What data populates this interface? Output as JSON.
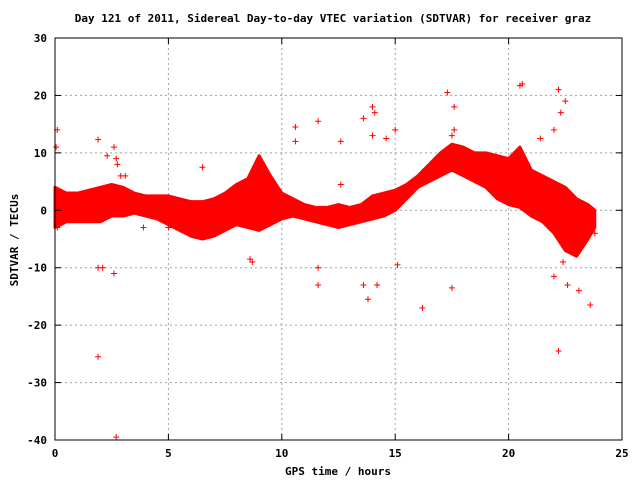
{
  "chart_data": {
    "type": "scatter",
    "title": "Day 121 of 2011, Sidereal Day-to-day VTEC variation (SDTVAR) for receiver graz",
    "xlabel": "GPS time / hours",
    "ylabel": "SDTVAR / TECUs",
    "xlim": [
      0,
      25
    ],
    "ylim": [
      -40,
      30
    ],
    "xticks": [
      "0",
      "5",
      "10",
      "15",
      "20",
      "25"
    ],
    "yticks": [
      "30",
      "20",
      "10",
      "0",
      "-10",
      "-20",
      "-30",
      "-40"
    ],
    "grid": true,
    "color": "#ff0000",
    "marker": "plus",
    "series": [
      {
        "band_x": [
          0.0,
          0.5,
          1.0,
          1.5,
          2.0,
          2.5,
          3.0,
          3.5,
          4.0,
          4.5,
          5.0,
          5.5,
          6.0,
          6.5,
          7.0,
          7.5,
          8.0,
          8.5,
          9.0,
          9.5,
          10.0,
          10.5,
          11.0,
          11.5,
          12.0,
          12.5,
          13.0,
          13.5,
          14.0,
          14.5,
          15.0,
          15.5,
          16.0,
          16.5,
          17.0,
          17.5,
          18.0,
          18.5,
          19.0,
          19.5,
          20.0,
          20.5,
          21.0,
          21.5,
          22.0,
          22.5,
          23.0,
          23.5,
          23.8
        ],
        "band_upper": [
          4,
          3,
          3,
          3.5,
          4,
          4.5,
          4,
          3,
          2.5,
          2.5,
          2.5,
          2,
          1.5,
          1.5,
          2,
          3,
          4.5,
          5.5,
          9.5,
          6,
          3,
          2,
          1,
          0.5,
          0.5,
          1,
          0.5,
          1,
          2.5,
          3,
          3.5,
          4.5,
          6,
          8,
          10,
          11.5,
          11,
          10,
          10,
          9.5,
          9,
          11,
          7,
          6,
          5,
          4,
          2,
          1,
          0
        ],
        "band_lower": [
          -3,
          -2,
          -2,
          -2,
          -2,
          -1,
          -1,
          -0.5,
          -1,
          -1.5,
          -2.5,
          -3.5,
          -4.5,
          -5,
          -4.5,
          -3.5,
          -2.5,
          -3,
          -3.5,
          -2.5,
          -1.5,
          -1,
          -1.5,
          -2,
          -2.5,
          -3,
          -2.5,
          -2,
          -1.5,
          -1,
          0,
          2,
          4,
          5,
          6,
          7,
          6,
          5,
          4,
          2,
          1,
          0.5,
          -1,
          -2,
          -4,
          -7,
          -8,
          -5,
          -3
        ]
      },
      {
        "name": "",
        "points": [
          [
            0.1,
            14
          ],
          [
            0.05,
            11
          ],
          [
            1.9,
            12.3
          ],
          [
            2.6,
            11
          ],
          [
            2.3,
            9.5
          ],
          [
            2.7,
            9
          ],
          [
            2.75,
            8
          ],
          [
            2.9,
            6
          ],
          [
            3.1,
            6
          ],
          [
            6.5,
            7.5
          ],
          [
            10.6,
            14.5
          ],
          [
            10.6,
            12
          ],
          [
            11.6,
            15.5
          ],
          [
            12.6,
            12
          ],
          [
            12.6,
            4.5
          ],
          [
            13.6,
            16
          ],
          [
            14.0,
            18
          ],
          [
            14.1,
            17
          ],
          [
            14.0,
            13
          ],
          [
            14.6,
            12.5
          ],
          [
            15.0,
            14
          ],
          [
            17.3,
            20.5
          ],
          [
            17.6,
            18
          ],
          [
            17.5,
            13
          ],
          [
            17.6,
            14
          ],
          [
            20.6,
            22
          ],
          [
            20.5,
            21.7
          ],
          [
            21.4,
            12.5
          ],
          [
            22.0,
            14
          ],
          [
            22.2,
            21
          ],
          [
            22.3,
            17
          ],
          [
            22.5,
            19
          ],
          [
            1.9,
            -25.5
          ],
          [
            2.7,
            -39.5
          ],
          [
            1.9,
            -10
          ],
          [
            2.1,
            -10
          ],
          [
            2.6,
            -11
          ],
          [
            8.6,
            -8.5
          ],
          [
            8.7,
            -9
          ],
          [
            11.6,
            -10
          ],
          [
            11.6,
            -13
          ],
          [
            13.6,
            -13
          ],
          [
            13.8,
            -15.5
          ],
          [
            14.2,
            -13
          ],
          [
            15.1,
            -9.5
          ],
          [
            16.2,
            -17
          ],
          [
            17.5,
            -13.5
          ],
          [
            22.2,
            -24.5
          ],
          [
            23.6,
            -16.5
          ],
          [
            22.0,
            -11.5
          ],
          [
            22.6,
            -13
          ],
          [
            23.1,
            -14
          ],
          [
            22.4,
            -9
          ],
          [
            23.8,
            -4
          ],
          [
            0.1,
            -3
          ],
          [
            3.9,
            -3
          ],
          [
            5.0,
            -3
          ],
          [
            9.0,
            6
          ]
        ]
      }
    ]
  }
}
